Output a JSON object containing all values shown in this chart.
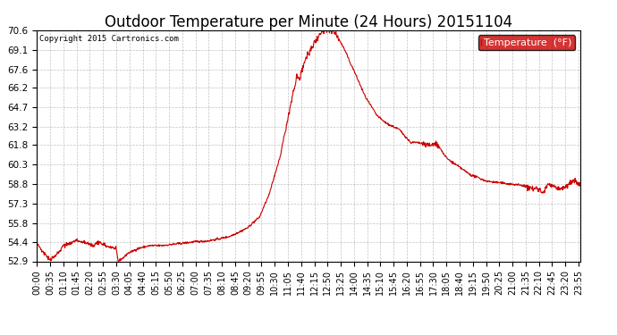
{
  "title": "Outdoor Temperature per Minute (24 Hours) 20151104",
  "copyright_text": "Copyright 2015 Cartronics.com",
  "legend_label": "Temperature  (°F)",
  "line_color": "#cc0000",
  "background_color": "#ffffff",
  "grid_color": "#999999",
  "ylim": [
    52.9,
    70.6
  ],
  "yticks": [
    52.9,
    54.4,
    55.8,
    57.3,
    58.8,
    60.3,
    61.8,
    63.2,
    64.7,
    66.2,
    67.6,
    69.1,
    70.6
  ],
  "title_fontsize": 12,
  "axis_fontsize": 7.5,
  "legend_bg": "#cc0000",
  "legend_text_color": "#ffffff",
  "control_points": [
    [
      0,
      54.2
    ],
    [
      20,
      53.5
    ],
    [
      35,
      53.0
    ],
    [
      55,
      53.5
    ],
    [
      70,
      54.1
    ],
    [
      105,
      54.5
    ],
    [
      130,
      54.3
    ],
    [
      140,
      54.2
    ],
    [
      150,
      54.1
    ],
    [
      165,
      54.35
    ],
    [
      180,
      54.1
    ],
    [
      195,
      54.0
    ],
    [
      210,
      53.8
    ],
    [
      215,
      52.9
    ],
    [
      230,
      53.2
    ],
    [
      240,
      53.5
    ],
    [
      270,
      53.9
    ],
    [
      300,
      54.1
    ],
    [
      330,
      54.1
    ],
    [
      360,
      54.2
    ],
    [
      390,
      54.3
    ],
    [
      420,
      54.4
    ],
    [
      450,
      54.45
    ],
    [
      480,
      54.6
    ],
    [
      510,
      54.8
    ],
    [
      540,
      55.2
    ],
    [
      560,
      55.5
    ],
    [
      570,
      55.8
    ],
    [
      590,
      56.3
    ],
    [
      600,
      57.0
    ],
    [
      615,
      58.0
    ],
    [
      630,
      59.5
    ],
    [
      645,
      61.0
    ],
    [
      655,
      62.5
    ],
    [
      660,
      63.0
    ],
    [
      665,
      63.8
    ],
    [
      670,
      64.6
    ],
    [
      675,
      65.3
    ],
    [
      680,
      66.0
    ],
    [
      685,
      66.5
    ],
    [
      688,
      67.2
    ],
    [
      692,
      66.8
    ],
    [
      697,
      67.0
    ],
    [
      702,
      67.5
    ],
    [
      707,
      68.0
    ],
    [
      712,
      68.4
    ],
    [
      717,
      68.6
    ],
    [
      722,
      68.9
    ],
    [
      727,
      69.2
    ],
    [
      732,
      69.5
    ],
    [
      737,
      69.7
    ],
    [
      742,
      70.0
    ],
    [
      747,
      70.2
    ],
    [
      752,
      70.35
    ],
    [
      757,
      70.45
    ],
    [
      762,
      70.5
    ],
    [
      767,
      70.55
    ],
    [
      772,
      70.6
    ],
    [
      777,
      70.55
    ],
    [
      782,
      70.5
    ],
    [
      787,
      70.45
    ],
    [
      792,
      70.3
    ],
    [
      797,
      70.1
    ],
    [
      800,
      69.9
    ],
    [
      810,
      69.4
    ],
    [
      820,
      68.8
    ],
    [
      830,
      68.1
    ],
    [
      840,
      67.5
    ],
    [
      855,
      66.5
    ],
    [
      870,
      65.5
    ],
    [
      885,
      64.8
    ],
    [
      900,
      64.1
    ],
    [
      915,
      63.7
    ],
    [
      930,
      63.4
    ],
    [
      945,
      63.2
    ],
    [
      960,
      63.0
    ],
    [
      975,
      62.5
    ],
    [
      990,
      62.0
    ],
    [
      1005,
      62.0
    ],
    [
      1020,
      61.9
    ],
    [
      1035,
      61.85
    ],
    [
      1045,
      61.8
    ],
    [
      1055,
      61.9
    ],
    [
      1060,
      61.85
    ],
    [
      1070,
      61.5
    ],
    [
      1080,
      61.0
    ],
    [
      1090,
      60.7
    ],
    [
      1100,
      60.5
    ],
    [
      1110,
      60.3
    ],
    [
      1120,
      60.1
    ],
    [
      1130,
      59.9
    ],
    [
      1140,
      59.7
    ],
    [
      1150,
      59.5
    ],
    [
      1160,
      59.4
    ],
    [
      1170,
      59.3
    ],
    [
      1185,
      59.1
    ],
    [
      1200,
      59.0
    ],
    [
      1215,
      58.95
    ],
    [
      1230,
      58.9
    ],
    [
      1245,
      58.85
    ],
    [
      1260,
      58.8
    ],
    [
      1275,
      58.75
    ],
    [
      1290,
      58.7
    ],
    [
      1300,
      58.6
    ],
    [
      1310,
      58.5
    ],
    [
      1315,
      58.4
    ],
    [
      1320,
      58.5
    ],
    [
      1325,
      58.55
    ],
    [
      1330,
      58.45
    ],
    [
      1335,
      58.3
    ],
    [
      1340,
      58.2
    ],
    [
      1345,
      58.3
    ],
    [
      1350,
      58.6
    ],
    [
      1355,
      58.9
    ],
    [
      1360,
      58.75
    ],
    [
      1365,
      58.6
    ],
    [
      1370,
      58.7
    ],
    [
      1375,
      58.55
    ],
    [
      1380,
      58.4
    ],
    [
      1385,
      58.45
    ],
    [
      1390,
      58.5
    ],
    [
      1400,
      58.6
    ],
    [
      1410,
      58.8
    ],
    [
      1420,
      59.0
    ],
    [
      1430,
      58.9
    ],
    [
      1439,
      58.8
    ]
  ]
}
